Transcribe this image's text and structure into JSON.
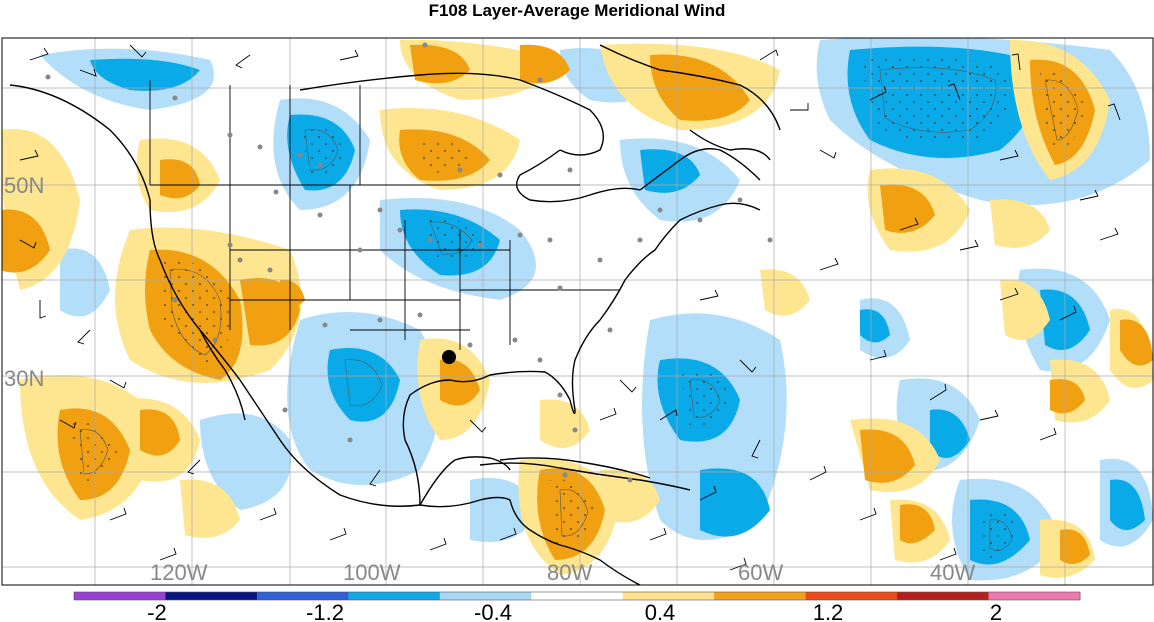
{
  "title": "F108 Layer-Average Meridional Wind",
  "map": {
    "lat_labels": [
      "50N",
      "30N"
    ],
    "lon_labels": [
      "120W",
      "100W",
      "80W",
      "60W",
      "40W"
    ],
    "point_marker": "black-dot",
    "anomaly_colors": {
      "strong_negative": "#0aaae9",
      "weak_negative": "#b2defa",
      "weak_positive": "#fde68f",
      "strong_positive": "#f0a010"
    }
  },
  "colorbar": {
    "tick_labels": [
      "-2",
      "-1.2",
      "-0.4",
      "0.4",
      "1.2",
      "2"
    ],
    "colors": [
      "#9a3fd8",
      "#0b1483",
      "#2f60d8",
      "#10a8e8",
      "#a6d8f6",
      "#ffffff",
      "#ffe28a",
      "#f2a11a",
      "#ee4a18",
      "#b4201e",
      "#f078b0"
    ]
  }
}
